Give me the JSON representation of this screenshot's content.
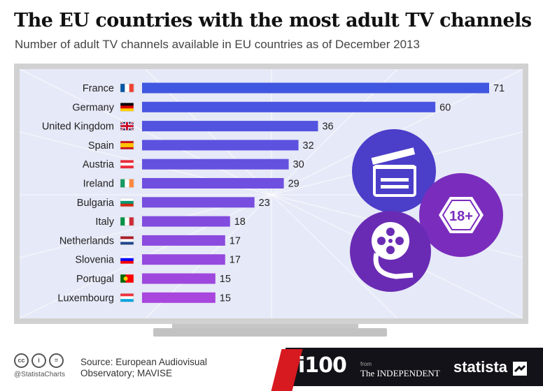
{
  "header": {
    "title": "The EU countries with the most adult TV channels",
    "subtitle": "Number of adult TV channels available in EU countries as of December 2013"
  },
  "chart_data": {
    "type": "bar",
    "orientation": "horizontal",
    "title": "The EU countries with the most adult TV channels",
    "subtitle": "Number of adult TV channels available in EU countries as of December 2013",
    "categories": [
      "France",
      "Germany",
      "United Kingdom",
      "Spain",
      "Austria",
      "Ireland",
      "Bulgaria",
      "Italy",
      "Netherlands",
      "Slovenia",
      "Portugal",
      "Luxembourg"
    ],
    "values": [
      71,
      60,
      36,
      32,
      30,
      29,
      23,
      18,
      17,
      17,
      15,
      15
    ],
    "xlim": [
      0,
      71
    ],
    "grid": false,
    "bar_color_start": "#3f57e0",
    "bar_color_end": "#a846dd"
  },
  "flags": [
    {
      "stripes": "vertical",
      "colors": [
        "#0055a4",
        "#ffffff",
        "#ef4135"
      ]
    },
    {
      "stripes": "horizontal",
      "colors": [
        "#000000",
        "#dd0000",
        "#ffce00"
      ]
    },
    {
      "stripes": "uk",
      "colors": [
        "#012169",
        "#ffffff",
        "#c8102e"
      ]
    },
    {
      "stripes": "spain",
      "colors": [
        "#c60b1e",
        "#ffc400",
        "#c60b1e"
      ]
    },
    {
      "stripes": "horizontal",
      "colors": [
        "#ed2939",
        "#ffffff",
        "#ed2939"
      ]
    },
    {
      "stripes": "vertical",
      "colors": [
        "#169b62",
        "#ffffff",
        "#ff883e"
      ]
    },
    {
      "stripes": "horizontal",
      "colors": [
        "#ffffff",
        "#00966e",
        "#d62612"
      ]
    },
    {
      "stripes": "vertical",
      "colors": [
        "#009246",
        "#ffffff",
        "#ce2b37"
      ]
    },
    {
      "stripes": "horizontal",
      "colors": [
        "#ae1c28",
        "#ffffff",
        "#21468b"
      ]
    },
    {
      "stripes": "horizontal",
      "colors": [
        "#ffffff",
        "#0000ff",
        "#ff0000"
      ]
    },
    {
      "stripes": "portugal",
      "colors": [
        "#006600",
        "#ff0000",
        "#ffcc00"
      ]
    },
    {
      "stripes": "horizontal",
      "colors": [
        "#ef3340",
        "#ffffff",
        "#00a3e0"
      ]
    }
  ],
  "illustration": {
    "badge_text": "18+",
    "circle_colors": [
      "#4b3ec9",
      "#7a2dbd",
      "#6a2bb4"
    ]
  },
  "footer": {
    "handle": "@StatistaCharts",
    "source_line1": "Source: European Audiovisual",
    "source_line2": "Observatory; MAVISE",
    "partner_logo": "i100",
    "partner_from": "from",
    "partner_publication": "The INDEPENDENT",
    "brand": "statista"
  }
}
